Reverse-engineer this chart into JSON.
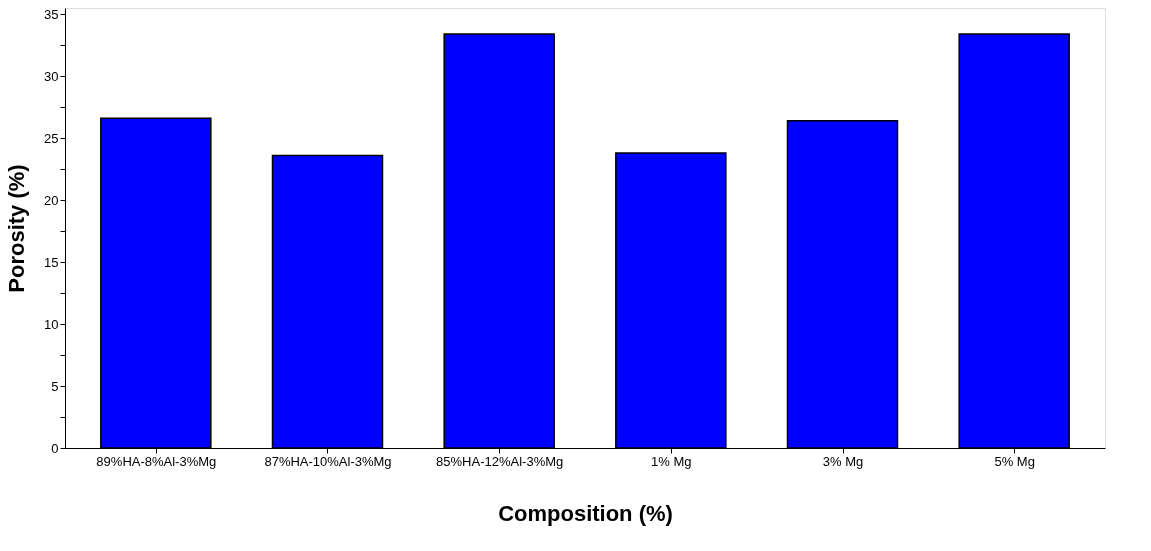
{
  "chart_data": {
    "type": "bar",
    "xlabel": "Composition (%)",
    "ylabel": "Porosity (%)",
    "categories": [
      "89%HA-8%Al-3%Mg",
      "87%HA-10%Al-3%Mg",
      "85%HA-12%Al-3%Mg",
      "1% Mg",
      "3% Mg",
      "5% Mg"
    ],
    "values": [
      26.6,
      23.6,
      33.4,
      23.8,
      26.4,
      33.4
    ],
    "color": "#0000ff",
    "ylim": [
      0,
      35.5
    ],
    "yticks": [
      0,
      {
        "value": 2.5,
        "label": null
      },
      5,
      {
        "value": 7.5,
        "label": null
      },
      10,
      {
        "value": 12.5,
        "label": null
      },
      15,
      {
        "value": 17.5,
        "label": null
      },
      20,
      {
        "value": 22.5,
        "label": null
      },
      25,
      {
        "value": 27.5,
        "label": null
      },
      30,
      {
        "value": 32.5,
        "label": null
      },
      35
    ],
    "grid": false
  }
}
